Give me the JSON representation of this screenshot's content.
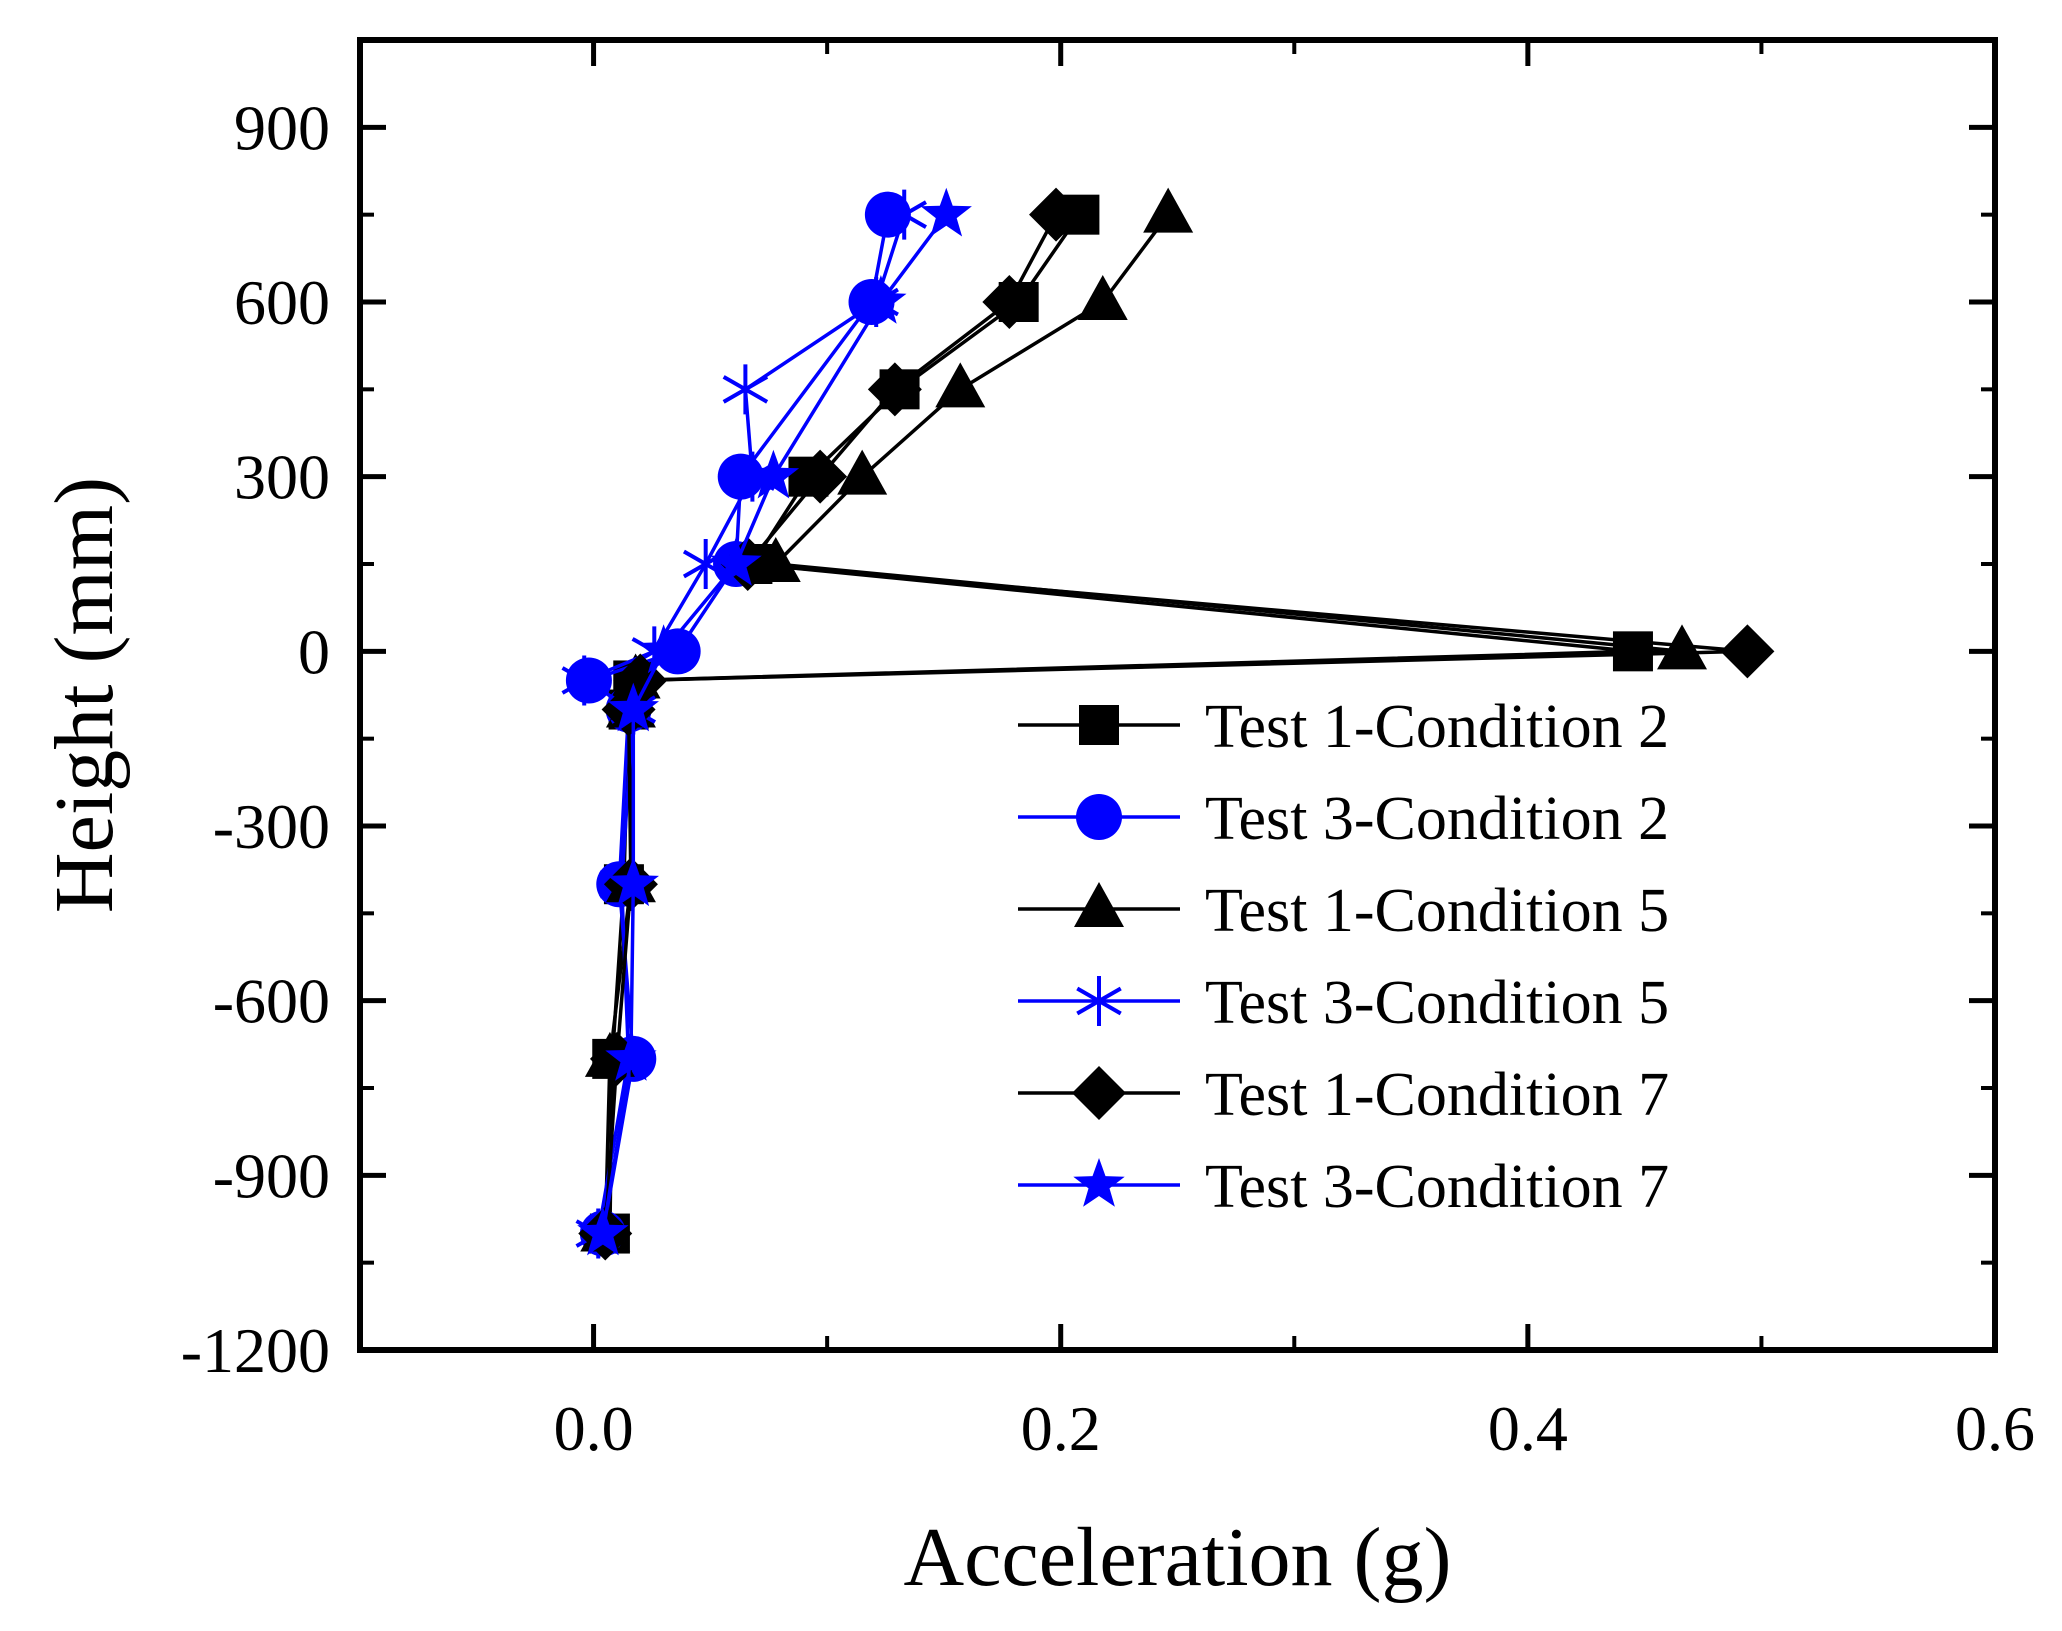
{
  "chart_data": {
    "type": "line",
    "title": "",
    "xlabel": "Acceleration (g)",
    "ylabel": "Height (mm)",
    "xlim": [
      -0.1,
      0.6
    ],
    "ylim": [
      -1200,
      1050
    ],
    "xticks": [
      0.0,
      0.2,
      0.4,
      0.6
    ],
    "xtick_labels": [
      "0.0",
      "0.2",
      "0.4",
      "0.6"
    ],
    "yticks": [
      900,
      600,
      300,
      0,
      -300,
      -600,
      -900,
      -1200
    ],
    "ytick_labels": [
      "900",
      "600",
      "300",
      "0",
      "-300",
      "-600",
      "-900",
      "-1200"
    ],
    "grid": false,
    "legend_position": "lower-right",
    "series": [
      {
        "name": "Test 1-Condition 2",
        "color": "#000000",
        "marker": "square",
        "points": [
          {
            "x": 0.007,
            "y": -1000
          },
          {
            "x": 0.008,
            "y": -700
          },
          {
            "x": 0.013,
            "y": -400
          },
          {
            "x": 0.015,
            "y": -100
          },
          {
            "x": 0.017,
            "y": -50
          },
          {
            "x": 0.445,
            "y": 0
          },
          {
            "x": 0.068,
            "y": 150
          },
          {
            "x": 0.092,
            "y": 300
          },
          {
            "x": 0.131,
            "y": 450
          },
          {
            "x": 0.182,
            "y": 600
          },
          {
            "x": 0.208,
            "y": 750
          }
        ]
      },
      {
        "name": "Test 3-Condition 2",
        "color": "#0000ff",
        "marker": "circle",
        "points": [
          {
            "x": 0.004,
            "y": -1000
          },
          {
            "x": 0.017,
            "y": -700
          },
          {
            "x": 0.011,
            "y": -400
          },
          {
            "x": 0.015,
            "y": -100
          },
          {
            "x": -0.002,
            "y": -50
          },
          {
            "x": 0.036,
            "y": 0
          },
          {
            "x": 0.061,
            "y": 150
          },
          {
            "x": 0.063,
            "y": 300
          },
          {
            "x": 0.119,
            "y": 600
          },
          {
            "x": 0.126,
            "y": 750
          }
        ]
      },
      {
        "name": "Test 1-Condition 5",
        "color": "#000000",
        "marker": "triangle",
        "points": [
          {
            "x": 0.005,
            "y": -1000
          },
          {
            "x": 0.007,
            "y": -700
          },
          {
            "x": 0.016,
            "y": -400
          },
          {
            "x": 0.016,
            "y": -100
          },
          {
            "x": 0.018,
            "y": -50
          },
          {
            "x": 0.466,
            "y": 0
          },
          {
            "x": 0.078,
            "y": 150
          },
          {
            "x": 0.115,
            "y": 300
          },
          {
            "x": 0.157,
            "y": 450
          },
          {
            "x": 0.218,
            "y": 600
          },
          {
            "x": 0.246,
            "y": 750
          }
        ]
      },
      {
        "name": "Test 3-Condition 5",
        "color": "#0000ff",
        "marker": "asterisk",
        "points": [
          {
            "x": 0.002,
            "y": -1000
          },
          {
            "x": 0.015,
            "y": -700
          },
          {
            "x": 0.012,
            "y": -400
          },
          {
            "x": 0.017,
            "y": -100
          },
          {
            "x": -0.004,
            "y": -50
          },
          {
            "x": 0.026,
            "y": 0
          },
          {
            "x": 0.048,
            "y": 150
          },
          {
            "x": 0.068,
            "y": 300
          },
          {
            "x": 0.065,
            "y": 450
          },
          {
            "x": 0.121,
            "y": 600
          },
          {
            "x": 0.133,
            "y": 750
          }
        ]
      },
      {
        "name": "Test 1-Condition 7",
        "color": "#000000",
        "marker": "diamond",
        "points": [
          {
            "x": 0.005,
            "y": -1000
          },
          {
            "x": 0.01,
            "y": -700
          },
          {
            "x": 0.016,
            "y": -400
          },
          {
            "x": 0.015,
            "y": -100
          },
          {
            "x": 0.02,
            "y": -50
          },
          {
            "x": 0.494,
            "y": 0
          },
          {
            "x": 0.066,
            "y": 150
          },
          {
            "x": 0.097,
            "y": 300
          },
          {
            "x": 0.129,
            "y": 450
          },
          {
            "x": 0.178,
            "y": 600
          },
          {
            "x": 0.198,
            "y": 750
          }
        ]
      },
      {
        "name": "Test 3-Condition 7",
        "color": "#0000ff",
        "marker": "star",
        "points": [
          {
            "x": 0.004,
            "y": -1000
          },
          {
            "x": 0.016,
            "y": -700
          },
          {
            "x": 0.017,
            "y": -400
          },
          {
            "x": 0.017,
            "y": -100
          },
          {
            "x": 0.03,
            "y": 0
          },
          {
            "x": 0.061,
            "y": 150
          },
          {
            "x": 0.077,
            "y": 300
          },
          {
            "x": 0.123,
            "y": 600
          },
          {
            "x": 0.151,
            "y": 750
          }
        ]
      }
    ]
  }
}
